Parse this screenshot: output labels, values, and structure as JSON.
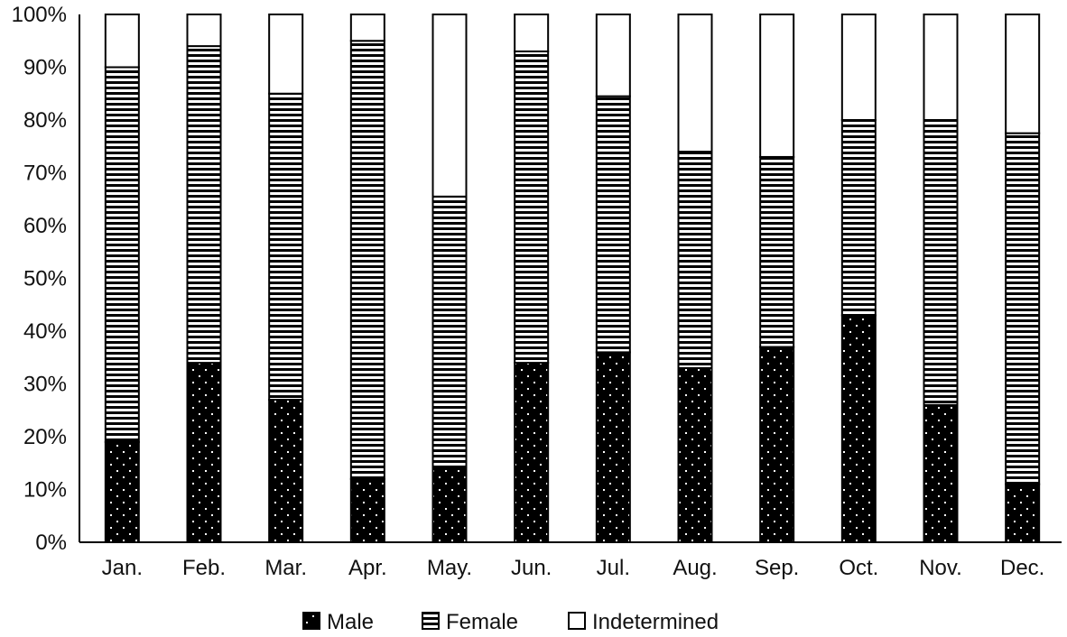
{
  "chart_data": {
    "type": "bar",
    "stacked": true,
    "percent_stacked": true,
    "categories": [
      "Jan.",
      "Feb.",
      "Mar.",
      "Apr.",
      "May.",
      "Jun.",
      "Jul.",
      "Aug.",
      "Sep.",
      "Oct.",
      "Nov.",
      "Dec."
    ],
    "series": [
      {
        "name": "Male",
        "pattern": "dots",
        "fill": "#000000",
        "values": [
          19,
          34,
          27,
          12,
          14,
          34,
          36,
          33,
          37,
          43,
          26,
          11
        ]
      },
      {
        "name": "Female",
        "pattern": "horizontal-lines",
        "fill": "#000000",
        "values": [
          71,
          60,
          58,
          83,
          51.5,
          59,
          48.5,
          41,
          36,
          37,
          54,
          66.5
        ]
      },
      {
        "name": "Indetermined",
        "pattern": "none",
        "fill": "#ffffff",
        "values": [
          10,
          6,
          15,
          5,
          34.5,
          7,
          15.5,
          26,
          27,
          20,
          20,
          22.5
        ]
      }
    ],
    "ylim": [
      0,
      100
    ],
    "yticks": [
      "0%",
      "10%",
      "20%",
      "30%",
      "40%",
      "50%",
      "60%",
      "70%",
      "80%",
      "90%",
      "100%"
    ],
    "grid": false,
    "legend_position": "bottom",
    "title": "",
    "xlabel": "",
    "ylabel": ""
  }
}
